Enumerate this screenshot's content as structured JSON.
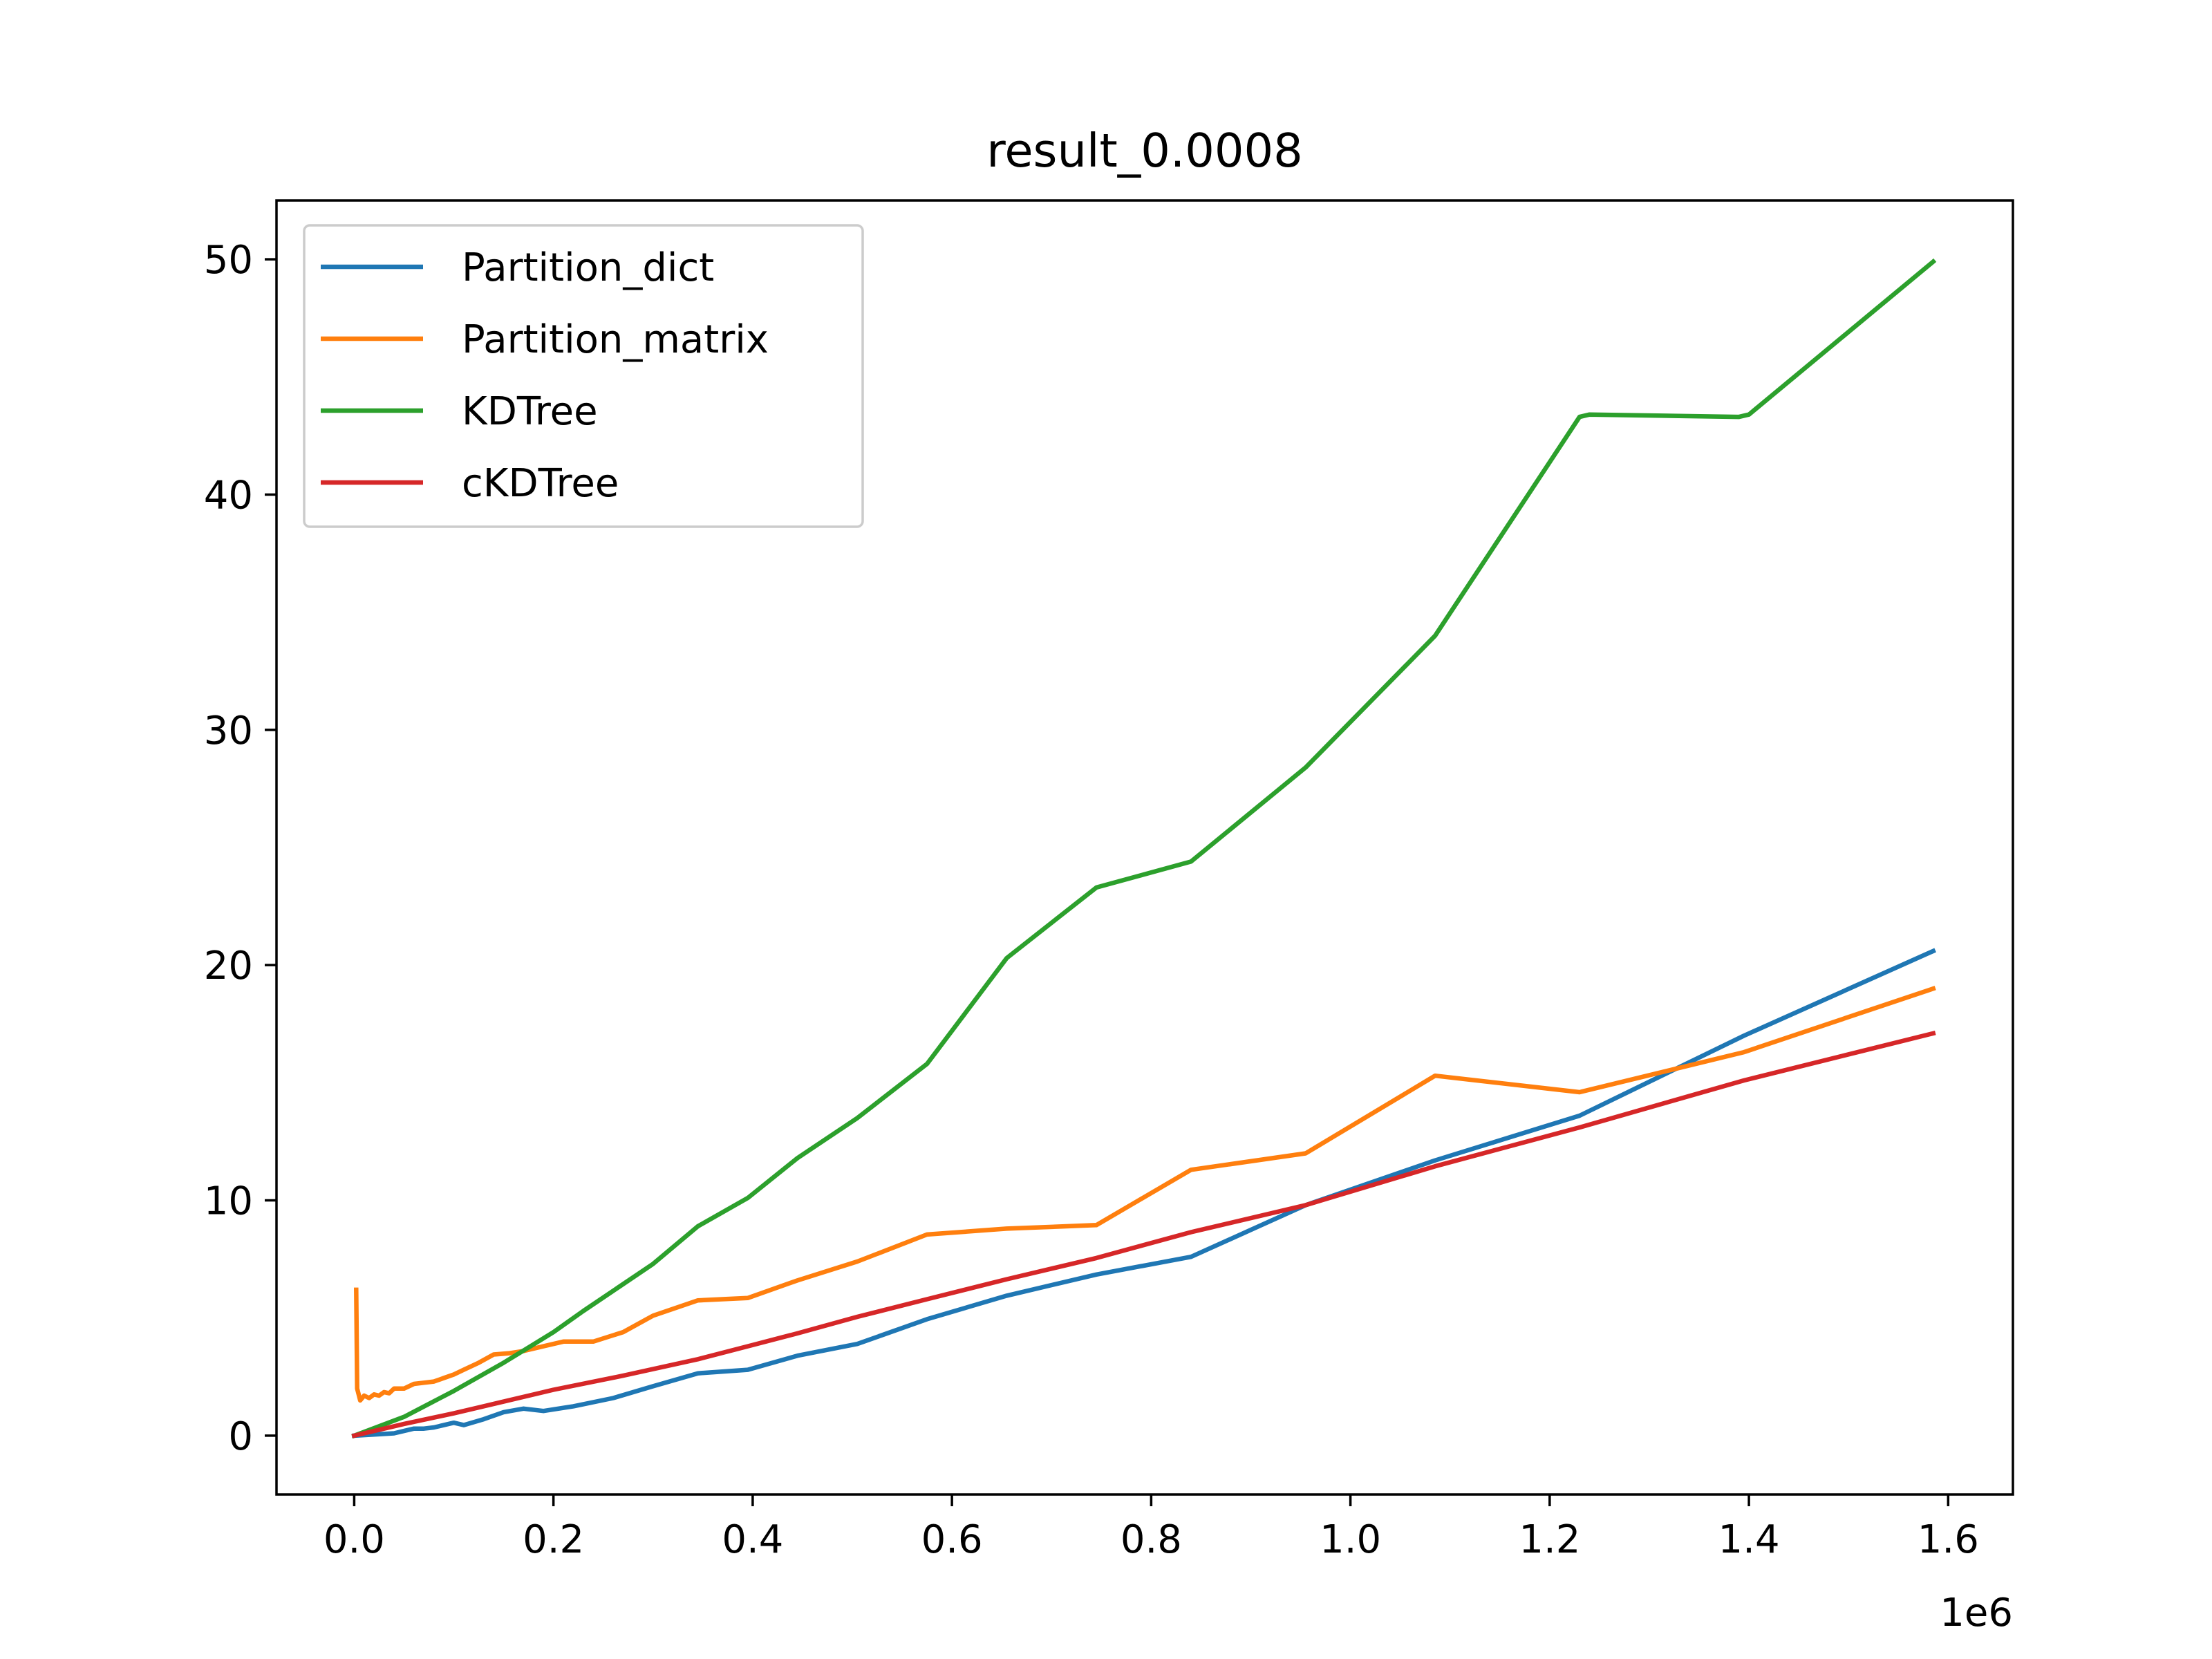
{
  "chart_data": {
    "type": "line",
    "title": "result_0.0008",
    "xlabel": "",
    "ylabel": "",
    "x_offset_label": "1e6",
    "xlim": [
      -0.078,
      1.665
    ],
    "ylim": [
      -2.5,
      52.5
    ],
    "x_ticks": [
      0.0,
      0.2,
      0.4,
      0.6,
      0.8,
      1.0,
      1.2,
      1.4,
      1.6
    ],
    "x_tick_labels": [
      "0.0",
      "0.2",
      "0.4",
      "0.6",
      "0.8",
      "1.0",
      "1.2",
      "1.4",
      "1.6"
    ],
    "y_ticks": [
      0,
      10,
      20,
      30,
      40,
      50
    ],
    "y_tick_labels": [
      "0",
      "10",
      "20",
      "30",
      "40",
      "50"
    ],
    "grid": false,
    "legend_position": "top-left",
    "series": [
      {
        "name": "Partition_dict",
        "color": "#1f77b4",
        "points": [
          [
            0.0,
            0.0
          ],
          [
            0.02,
            0.05
          ],
          [
            0.04,
            0.1
          ],
          [
            0.05,
            0.2
          ],
          [
            0.06,
            0.3
          ],
          [
            0.07,
            0.3
          ],
          [
            0.08,
            0.35
          ],
          [
            0.1,
            0.55
          ],
          [
            0.11,
            0.45
          ],
          [
            0.13,
            0.7
          ],
          [
            0.15,
            1.0
          ],
          [
            0.17,
            1.15
          ],
          [
            0.19,
            1.05
          ],
          [
            0.22,
            1.25
          ],
          [
            0.26,
            1.6
          ],
          [
            0.3,
            2.1
          ],
          [
            0.345,
            2.65
          ],
          [
            0.395,
            2.8
          ],
          [
            0.445,
            3.4
          ],
          [
            0.505,
            3.9
          ],
          [
            0.575,
            4.95
          ],
          [
            0.655,
            5.95
          ],
          [
            0.745,
            6.85
          ],
          [
            0.84,
            7.6
          ],
          [
            0.955,
            9.8
          ],
          [
            1.085,
            11.7
          ],
          [
            1.23,
            13.6
          ],
          [
            1.395,
            17.0
          ],
          [
            1.585,
            20.6
          ]
        ]
      },
      {
        "name": "Partition_matrix",
        "color": "#ff7f0e",
        "points": [
          [
            0.002,
            6.2
          ],
          [
            0.003,
            2.0
          ],
          [
            0.006,
            1.5
          ],
          [
            0.01,
            1.7
          ],
          [
            0.015,
            1.6
          ],
          [
            0.02,
            1.75
          ],
          [
            0.025,
            1.7
          ],
          [
            0.03,
            1.85
          ],
          [
            0.035,
            1.8
          ],
          [
            0.04,
            2.0
          ],
          [
            0.05,
            2.0
          ],
          [
            0.06,
            2.2
          ],
          [
            0.07,
            2.25
          ],
          [
            0.08,
            2.3
          ],
          [
            0.09,
            2.45
          ],
          [
            0.1,
            2.6
          ],
          [
            0.11,
            2.8
          ],
          [
            0.125,
            3.1
          ],
          [
            0.14,
            3.45
          ],
          [
            0.155,
            3.5
          ],
          [
            0.17,
            3.6
          ],
          [
            0.19,
            3.8
          ],
          [
            0.21,
            4.0
          ],
          [
            0.24,
            4.0
          ],
          [
            0.27,
            4.4
          ],
          [
            0.3,
            5.1
          ],
          [
            0.345,
            5.75
          ],
          [
            0.395,
            5.85
          ],
          [
            0.445,
            6.6
          ],
          [
            0.505,
            7.4
          ],
          [
            0.575,
            8.55
          ],
          [
            0.655,
            8.8
          ],
          [
            0.745,
            8.95
          ],
          [
            0.84,
            11.3
          ],
          [
            0.955,
            12.0
          ],
          [
            1.085,
            15.3
          ],
          [
            1.23,
            14.6
          ],
          [
            1.395,
            16.3
          ],
          [
            1.585,
            19.0
          ]
        ]
      },
      {
        "name": "KDTree",
        "color": "#2ca02c",
        "points": [
          [
            0.0,
            0.0
          ],
          [
            0.05,
            0.8
          ],
          [
            0.1,
            1.9
          ],
          [
            0.15,
            3.1
          ],
          [
            0.2,
            4.4
          ],
          [
            0.23,
            5.3
          ],
          [
            0.265,
            6.3
          ],
          [
            0.3,
            7.3
          ],
          [
            0.345,
            8.9
          ],
          [
            0.395,
            10.1
          ],
          [
            0.445,
            11.8
          ],
          [
            0.505,
            13.5
          ],
          [
            0.575,
            15.8
          ],
          [
            0.655,
            20.3
          ],
          [
            0.745,
            23.3
          ],
          [
            0.84,
            24.4
          ],
          [
            0.955,
            28.4
          ],
          [
            1.085,
            34.0
          ],
          [
            1.23,
            43.3
          ],
          [
            1.24,
            43.4
          ],
          [
            1.39,
            43.3
          ],
          [
            1.4,
            43.4
          ],
          [
            1.585,
            49.9
          ]
        ]
      },
      {
        "name": "cKDTree",
        "color": "#d62728",
        "points": [
          [
            0.0,
            0.0
          ],
          [
            0.05,
            0.5
          ],
          [
            0.1,
            0.95
          ],
          [
            0.15,
            1.45
          ],
          [
            0.2,
            1.95
          ],
          [
            0.27,
            2.55
          ],
          [
            0.345,
            3.25
          ],
          [
            0.395,
            3.8
          ],
          [
            0.445,
            4.35
          ],
          [
            0.505,
            5.05
          ],
          [
            0.575,
            5.8
          ],
          [
            0.655,
            6.65
          ],
          [
            0.745,
            7.55
          ],
          [
            0.84,
            8.65
          ],
          [
            0.955,
            9.8
          ],
          [
            1.085,
            11.45
          ],
          [
            1.23,
            13.1
          ],
          [
            1.395,
            15.1
          ],
          [
            1.585,
            17.1
          ]
        ]
      }
    ]
  }
}
